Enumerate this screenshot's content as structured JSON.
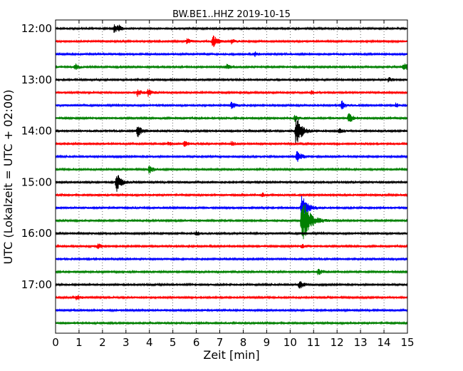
{
  "chart_data": {
    "type": "line",
    "title": "BW.BE1..HHZ 2019-10-15",
    "xlabel": "Zeit  [min]",
    "ylabel": "UTC (Lokalzeit = UTC + 02:00)",
    "xlim": [
      0,
      15
    ],
    "x_ticks": [
      "0",
      "1",
      "2",
      "3",
      "4",
      "5",
      "6",
      "7",
      "8",
      "9",
      "10",
      "11",
      "12",
      "13",
      "14",
      "15"
    ],
    "y_ticks": [
      {
        "label": "12:00",
        "trace": 0
      },
      {
        "label": "13:00",
        "trace": 4
      },
      {
        "label": "14:00",
        "trace": 8
      },
      {
        "label": "15:00",
        "trace": 12
      },
      {
        "label": "16:00",
        "trace": 16
      },
      {
        "label": "17:00",
        "trace": 20
      }
    ],
    "trace_interval_min": 15,
    "grid": "vertical dotted",
    "colors": [
      "#000000",
      "#ff0000",
      "#0000ff",
      "#008000"
    ],
    "traces": [
      {
        "start": "12:00",
        "events": [
          [
            2.5,
            6
          ],
          [
            2.7,
            3
          ]
        ]
      },
      {
        "start": "12:15",
        "events": [
          [
            5.6,
            4
          ],
          [
            6.7,
            10
          ],
          [
            7.5,
            3
          ]
        ]
      },
      {
        "start": "12:30",
        "events": [
          [
            8.5,
            3
          ]
        ]
      },
      {
        "start": "12:45",
        "events": [
          [
            0.85,
            4
          ],
          [
            7.3,
            3
          ],
          [
            14.85,
            7
          ]
        ]
      },
      {
        "start": "13:00",
        "events": [
          [
            14.2,
            3
          ]
        ]
      },
      {
        "start": "13:15",
        "events": [
          [
            3.5,
            5
          ],
          [
            3.95,
            5
          ],
          [
            10.9,
            3
          ]
        ]
      },
      {
        "start": "13:30",
        "events": [
          [
            7.5,
            5
          ],
          [
            12.2,
            6
          ],
          [
            14.5,
            3
          ]
        ]
      },
      {
        "start": "13:45",
        "events": [
          [
            12.5,
            8
          ],
          [
            10.2,
            4
          ]
        ]
      },
      {
        "start": "14:00",
        "events": [
          [
            3.5,
            9
          ],
          [
            10.25,
            22
          ],
          [
            12.1,
            4
          ]
        ]
      },
      {
        "start": "14:15",
        "events": [
          [
            4.8,
            3
          ],
          [
            5.5,
            4
          ],
          [
            7.5,
            3
          ]
        ]
      },
      {
        "start": "14:30",
        "events": [
          [
            10.3,
            10
          ]
        ]
      },
      {
        "start": "14:45",
        "events": [
          [
            4.0,
            6
          ]
        ]
      },
      {
        "start": "15:00",
        "events": [
          [
            2.6,
            14
          ]
        ]
      },
      {
        "start": "15:15",
        "events": [
          [
            8.8,
            3
          ]
        ]
      },
      {
        "start": "15:30",
        "events": [
          [
            10.5,
            22
          ]
        ]
      },
      {
        "start": "15:45",
        "events": [
          [
            10.5,
            38
          ]
        ]
      },
      {
        "start": "16:00",
        "events": [
          [
            6.0,
            3
          ]
        ]
      },
      {
        "start": "16:15",
        "events": [
          [
            1.8,
            4
          ],
          [
            10.5,
            3
          ]
        ]
      },
      {
        "start": "16:30",
        "events": []
      },
      {
        "start": "16:45",
        "events": [
          [
            11.2,
            5
          ]
        ]
      },
      {
        "start": "17:00",
        "events": [
          [
            10.4,
            7
          ]
        ]
      },
      {
        "start": "17:15",
        "events": [
          [
            0.9,
            3
          ]
        ]
      },
      {
        "start": "17:30",
        "events": []
      },
      {
        "start": "17:45",
        "events": []
      }
    ]
  }
}
